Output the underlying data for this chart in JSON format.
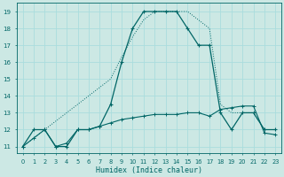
{
  "xlabel": "Humidex (Indice chaleur)",
  "bg_color": "#cce8e4",
  "grid_color": "#aadddd",
  "line_color": "#006666",
  "red_line_color": "#cc0000",
  "xlim": [
    -0.5,
    23.5
  ],
  "ylim": [
    10.6,
    19.5
  ],
  "xticks": [
    0,
    1,
    2,
    3,
    4,
    5,
    6,
    7,
    8,
    9,
    10,
    11,
    12,
    13,
    14,
    15,
    16,
    17,
    18,
    19,
    20,
    21,
    22,
    23
  ],
  "yticks": [
    11,
    12,
    13,
    14,
    15,
    16,
    17,
    18,
    19
  ],
  "series1": [
    11,
    12,
    12,
    11,
    11,
    12,
    12,
    12.2,
    13.5,
    16,
    18,
    19,
    19,
    19,
    19,
    18,
    17,
    17,
    13,
    12,
    13,
    13,
    12,
    12
  ],
  "series2_dotted": [
    11,
    11.5,
    12,
    11,
    11.2,
    12,
    12,
    12.2,
    12.4,
    12.6,
    12.7,
    12.8,
    12.9,
    12.9,
    12.9,
    13.0,
    13.0,
    12.8,
    13.2,
    13.3,
    13.4,
    13.4,
    11.8,
    11.7
  ],
  "series3_diag": [
    11,
    11.5,
    12,
    12.5,
    13,
    13.5,
    14,
    14.5,
    15,
    16.3,
    17.5,
    18.5,
    19,
    19,
    19,
    19,
    18.5,
    18,
    13.5,
    13,
    13,
    13,
    12,
    12
  ]
}
